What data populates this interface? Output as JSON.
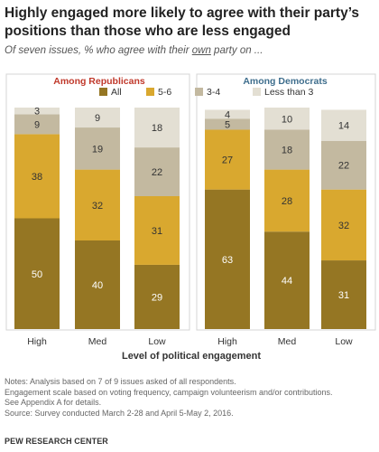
{
  "header": {
    "title": "Highly engaged more likely to agree with their party’s positions than those who are less engaged",
    "subtitle_prefix": "Of seven issues, % who agree with their ",
    "subtitle_underlined": "own",
    "subtitle_suffix": " party on ..."
  },
  "colors": {
    "All": "#957623",
    "5-6": "#d9a82f",
    "3-4": "#c3b9a0",
    "Less than 3": "#e3dfd3",
    "republican_title": "#c0392b",
    "democrat_title": "#3f6e8d",
    "label_dark": "#ffffff",
    "label_light": "#333333"
  },
  "chart_data": [
    {
      "type": "bar",
      "stacked": true,
      "panel_title": "Among Republicans",
      "categories": [
        "High",
        "Med",
        "Low"
      ],
      "series": [
        {
          "name": "All",
          "values": [
            50,
            40,
            29
          ]
        },
        {
          "name": "5-6",
          "values": [
            38,
            32,
            31
          ]
        },
        {
          "name": "3-4",
          "values": [
            9,
            19,
            22
          ]
        },
        {
          "name": "Less than 3",
          "values": [
            3,
            9,
            18
          ]
        }
      ],
      "ylim": [
        0,
        100
      ]
    },
    {
      "type": "bar",
      "stacked": true,
      "panel_title": "Among Democrats",
      "categories": [
        "High",
        "Med",
        "Low"
      ],
      "series": [
        {
          "name": "All",
          "values": [
            63,
            44,
            31
          ]
        },
        {
          "name": "5-6",
          "values": [
            27,
            28,
            32
          ]
        },
        {
          "name": "3-4",
          "values": [
            5,
            18,
            22
          ]
        },
        {
          "name": "Less than 3",
          "values": [
            4,
            10,
            14
          ]
        }
      ],
      "ylim": [
        0,
        100
      ]
    }
  ],
  "legend": [
    "All",
    "5-6",
    "3-4",
    "Less than 3"
  ],
  "xlabel": "Level of political engagement",
  "notes": [
    "Notes: Analysis based on 7 of 9 issues asked of all respondents.",
    "Engagement scale based on voting frequency, campaign volunteerism and/or contributions.",
    "See Appendix A for details.",
    "Source: Survey conducted March 2-28 and April 5-May 2, 2016."
  ],
  "source_org": "PEW RESEARCH CENTER"
}
